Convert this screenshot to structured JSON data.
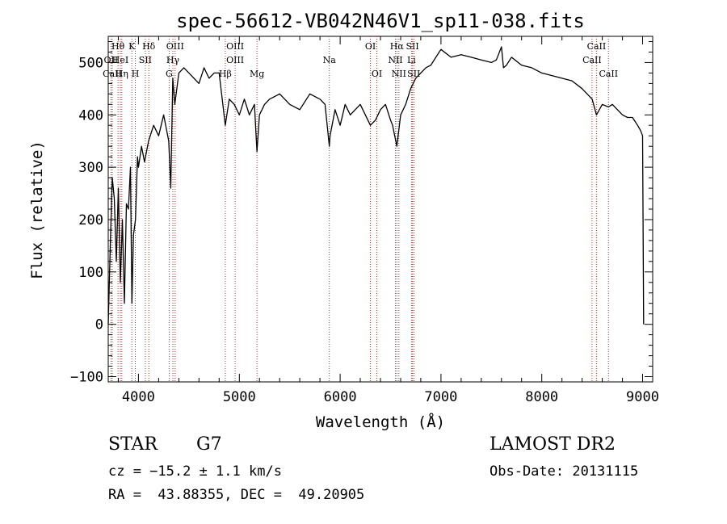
{
  "chart_data": {
    "type": "line",
    "title": "spec-56612-VB042N46V1_sp11-038.fits",
    "xlabel": "Wavelength (Å)",
    "ylabel": "Flux (relative)",
    "xlim": [
      3700,
      9100
    ],
    "ylim": [
      -110,
      550
    ],
    "xticks": [
      4000,
      5000,
      6000,
      7000,
      8000,
      9000
    ],
    "yticks": [
      -100,
      0,
      100,
      200,
      300,
      400,
      500
    ],
    "xtick_labels": [
      "4000",
      "5000",
      "6000",
      "7000",
      "8000",
      "9000"
    ],
    "ytick_labels": [
      "−100",
      "0",
      "100",
      "200",
      "300",
      "400",
      "500"
    ],
    "series": [
      {
        "name": "flux",
        "x": [
          3700,
          3720,
          3740,
          3760,
          3780,
          3800,
          3820,
          3840,
          3860,
          3880,
          3900,
          3920,
          3935,
          3950,
          3970,
          3990,
          4000,
          4030,
          4060,
          4100,
          4150,
          4200,
          4250,
          4300,
          4320,
          4340,
          4360,
          4400,
          4450,
          4500,
          4550,
          4600,
          4650,
          4700,
          4750,
          4800,
          4861,
          4900,
          4950,
          5000,
          5050,
          5100,
          5150,
          5175,
          5200,
          5250,
          5300,
          5400,
          5500,
          5600,
          5700,
          5800,
          5850,
          5893,
          5900,
          5950,
          6000,
          6050,
          6100,
          6150,
          6200,
          6250,
          6300,
          6350,
          6400,
          6450,
          6500,
          6520,
          6563,
          6600,
          6650,
          6700,
          6750,
          6800,
          6850,
          6900,
          6950,
          7000,
          7100,
          7200,
          7300,
          7400,
          7500,
          7550,
          7600,
          7620,
          7650,
          7700,
          7800,
          7900,
          8000,
          8100,
          8200,
          8300,
          8400,
          8500,
          8542,
          8600,
          8662,
          8700,
          8750,
          8800,
          8850,
          8900,
          8950,
          8980,
          9000,
          9010
        ],
        "y": [
          0,
          150,
          280,
          240,
          120,
          260,
          80,
          200,
          40,
          230,
          220,
          300,
          40,
          170,
          200,
          320,
          300,
          340,
          310,
          350,
          380,
          360,
          400,
          350,
          260,
          470,
          420,
          480,
          490,
          480,
          470,
          460,
          490,
          470,
          480,
          480,
          380,
          430,
          420,
          400,
          430,
          400,
          420,
          330,
          400,
          420,
          430,
          440,
          420,
          410,
          440,
          430,
          420,
          340,
          360,
          410,
          380,
          420,
          400,
          410,
          420,
          400,
          380,
          390,
          410,
          420,
          390,
          380,
          340,
          400,
          420,
          450,
          470,
          480,
          490,
          495,
          510,
          525,
          510,
          515,
          510,
          505,
          500,
          505,
          530,
          490,
          495,
          510,
          495,
          490,
          480,
          475,
          470,
          465,
          450,
          430,
          400,
          420,
          415,
          420,
          410,
          400,
          395,
          395,
          380,
          370,
          360,
          0
        ]
      }
    ],
    "lines": [
      {
        "label": "Hθ",
        "wl": 3797,
        "row": 0
      },
      {
        "label": "OII",
        "wl": 3727,
        "row": 1
      },
      {
        "label": "CaII",
        "wl": 3740,
        "row": 2
      },
      {
        "label": "HeI",
        "wl": 3820,
        "row": 1
      },
      {
        "label": "Hη",
        "wl": 3835,
        "row": 2
      },
      {
        "label": "K",
        "wl": 3934,
        "row": 0
      },
      {
        "label": "H",
        "wl": 3968,
        "row": 2
      },
      {
        "label": "SII",
        "wl": 4068,
        "row": 1
      },
      {
        "label": "Hδ",
        "wl": 4102,
        "row": 0
      },
      {
        "label": "OIII",
        "wl": 4363,
        "row": 0
      },
      {
        "label": "Hγ",
        "wl": 4341,
        "row": 1
      },
      {
        "label": "G",
        "wl": 4304,
        "row": 2
      },
      {
        "label": "OIII",
        "wl": 4959,
        "row": 0
      },
      {
        "label": "OIII",
        "wl": 4959,
        "row": 1
      },
      {
        "label": "Hβ",
        "wl": 4861,
        "row": 2
      },
      {
        "label": "Mg",
        "wl": 5175,
        "row": 2
      },
      {
        "label": "Na",
        "wl": 5893,
        "row": 1
      },
      {
        "label": "OI",
        "wl": 6300,
        "row": 0
      },
      {
        "label": "OI",
        "wl": 6364,
        "row": 2
      },
      {
        "label": "Hα",
        "wl": 6563,
        "row": 0
      },
      {
        "label": "SII",
        "wl": 6717,
        "row": 0
      },
      {
        "label": "NII",
        "wl": 6548,
        "row": 1
      },
      {
        "label": "Li",
        "wl": 6708,
        "row": 1
      },
      {
        "label": "NII",
        "wl": 6583,
        "row": 2
      },
      {
        "label": "SII",
        "wl": 6731,
        "row": 2
      },
      {
        "label": "CaII",
        "wl": 8542,
        "row": 0
      },
      {
        "label": "CaII",
        "wl": 8498,
        "row": 1
      },
      {
        "label": "CaII",
        "wl": 8662,
        "row": 2
      }
    ],
    "line_color": "#b03030",
    "grid": false
  },
  "info": {
    "object_type": "STAR",
    "subclass": "G7",
    "survey": "LAMOST DR2",
    "cz": "cz = −15.2 ± 1.1 km/s",
    "obs_date": "Obs-Date: 20131115",
    "radec": "RA =  43.88355, DEC =  49.20905"
  }
}
